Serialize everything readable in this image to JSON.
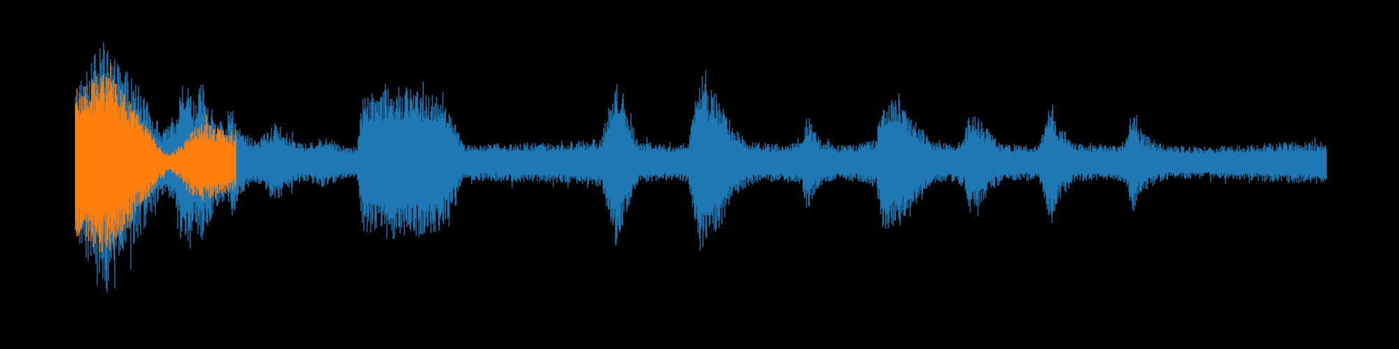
{
  "chart_data": {
    "type": "area",
    "title": "",
    "xlabel": "",
    "ylabel": "",
    "grid": false,
    "axes_visible": false,
    "background": "#000000",
    "xlim": [
      0,
      1
    ],
    "ylim": [
      -1,
      1
    ],
    "series": [
      {
        "color": "#1f77b4",
        "envelope": [
          [
            0.0,
            0.56
          ],
          [
            0.01,
            0.74
          ],
          [
            0.02,
            0.86
          ],
          [
            0.025,
            0.97
          ],
          [
            0.03,
            0.78
          ],
          [
            0.04,
            0.7
          ],
          [
            0.05,
            0.58
          ],
          [
            0.06,
            0.4
          ],
          [
            0.07,
            0.24
          ],
          [
            0.08,
            0.32
          ],
          [
            0.085,
            0.66
          ],
          [
            0.09,
            0.6
          ],
          [
            0.095,
            0.44
          ],
          [
            0.1,
            0.62
          ],
          [
            0.105,
            0.52
          ],
          [
            0.11,
            0.38
          ],
          [
            0.12,
            0.28
          ],
          [
            0.125,
            0.4
          ],
          [
            0.135,
            0.22
          ],
          [
            0.145,
            0.16
          ],
          [
            0.16,
            0.3
          ],
          [
            0.175,
            0.17
          ],
          [
            0.185,
            0.14
          ],
          [
            0.2,
            0.2
          ],
          [
            0.21,
            0.14
          ],
          [
            0.225,
            0.12
          ],
          [
            0.23,
            0.52
          ],
          [
            0.24,
            0.55
          ],
          [
            0.25,
            0.57
          ],
          [
            0.27,
            0.56
          ],
          [
            0.29,
            0.54
          ],
          [
            0.3,
            0.38
          ],
          [
            0.31,
            0.14
          ],
          [
            0.33,
            0.14
          ],
          [
            0.35,
            0.15
          ],
          [
            0.38,
            0.15
          ],
          [
            0.41,
            0.17
          ],
          [
            0.42,
            0.18
          ],
          [
            0.425,
            0.38
          ],
          [
            0.432,
            0.64
          ],
          [
            0.44,
            0.42
          ],
          [
            0.45,
            0.16
          ],
          [
            0.48,
            0.13
          ],
          [
            0.49,
            0.16
          ],
          [
            0.495,
            0.45
          ],
          [
            0.5,
            0.7
          ],
          [
            0.505,
            0.56
          ],
          [
            0.515,
            0.5
          ],
          [
            0.525,
            0.28
          ],
          [
            0.54,
            0.16
          ],
          [
            0.56,
            0.14
          ],
          [
            0.58,
            0.16
          ],
          [
            0.585,
            0.36
          ],
          [
            0.595,
            0.18
          ],
          [
            0.61,
            0.13
          ],
          [
            0.63,
            0.15
          ],
          [
            0.64,
            0.18
          ],
          [
            0.645,
            0.5
          ],
          [
            0.66,
            0.48
          ],
          [
            0.67,
            0.33
          ],
          [
            0.685,
            0.16
          ],
          [
            0.7,
            0.14
          ],
          [
            0.71,
            0.18
          ],
          [
            0.715,
            0.4
          ],
          [
            0.725,
            0.3
          ],
          [
            0.74,
            0.14
          ],
          [
            0.77,
            0.13
          ],
          [
            0.775,
            0.3
          ],
          [
            0.78,
            0.52
          ],
          [
            0.785,
            0.3
          ],
          [
            0.8,
            0.14
          ],
          [
            0.83,
            0.13
          ],
          [
            0.84,
            0.17
          ],
          [
            0.845,
            0.42
          ],
          [
            0.85,
            0.24
          ],
          [
            0.87,
            0.13
          ],
          [
            0.9,
            0.12
          ],
          [
            0.93,
            0.13
          ],
          [
            0.96,
            0.15
          ],
          [
            0.99,
            0.16
          ],
          [
            1.0,
            0.16
          ]
        ]
      },
      {
        "color": "#ff7f0e",
        "envelope": [
          [
            0.0,
            0.55
          ],
          [
            0.01,
            0.62
          ],
          [
            0.02,
            0.68
          ],
          [
            0.03,
            0.64
          ],
          [
            0.04,
            0.52
          ],
          [
            0.05,
            0.36
          ],
          [
            0.06,
            0.24
          ],
          [
            0.068,
            0.12
          ],
          [
            0.075,
            0.06
          ],
          [
            0.085,
            0.14
          ],
          [
            0.092,
            0.24
          ],
          [
            0.1,
            0.3
          ],
          [
            0.108,
            0.28
          ],
          [
            0.12,
            0.24
          ],
          [
            0.128,
            0.2
          ]
        ],
        "x_end": 0.128
      }
    ]
  }
}
